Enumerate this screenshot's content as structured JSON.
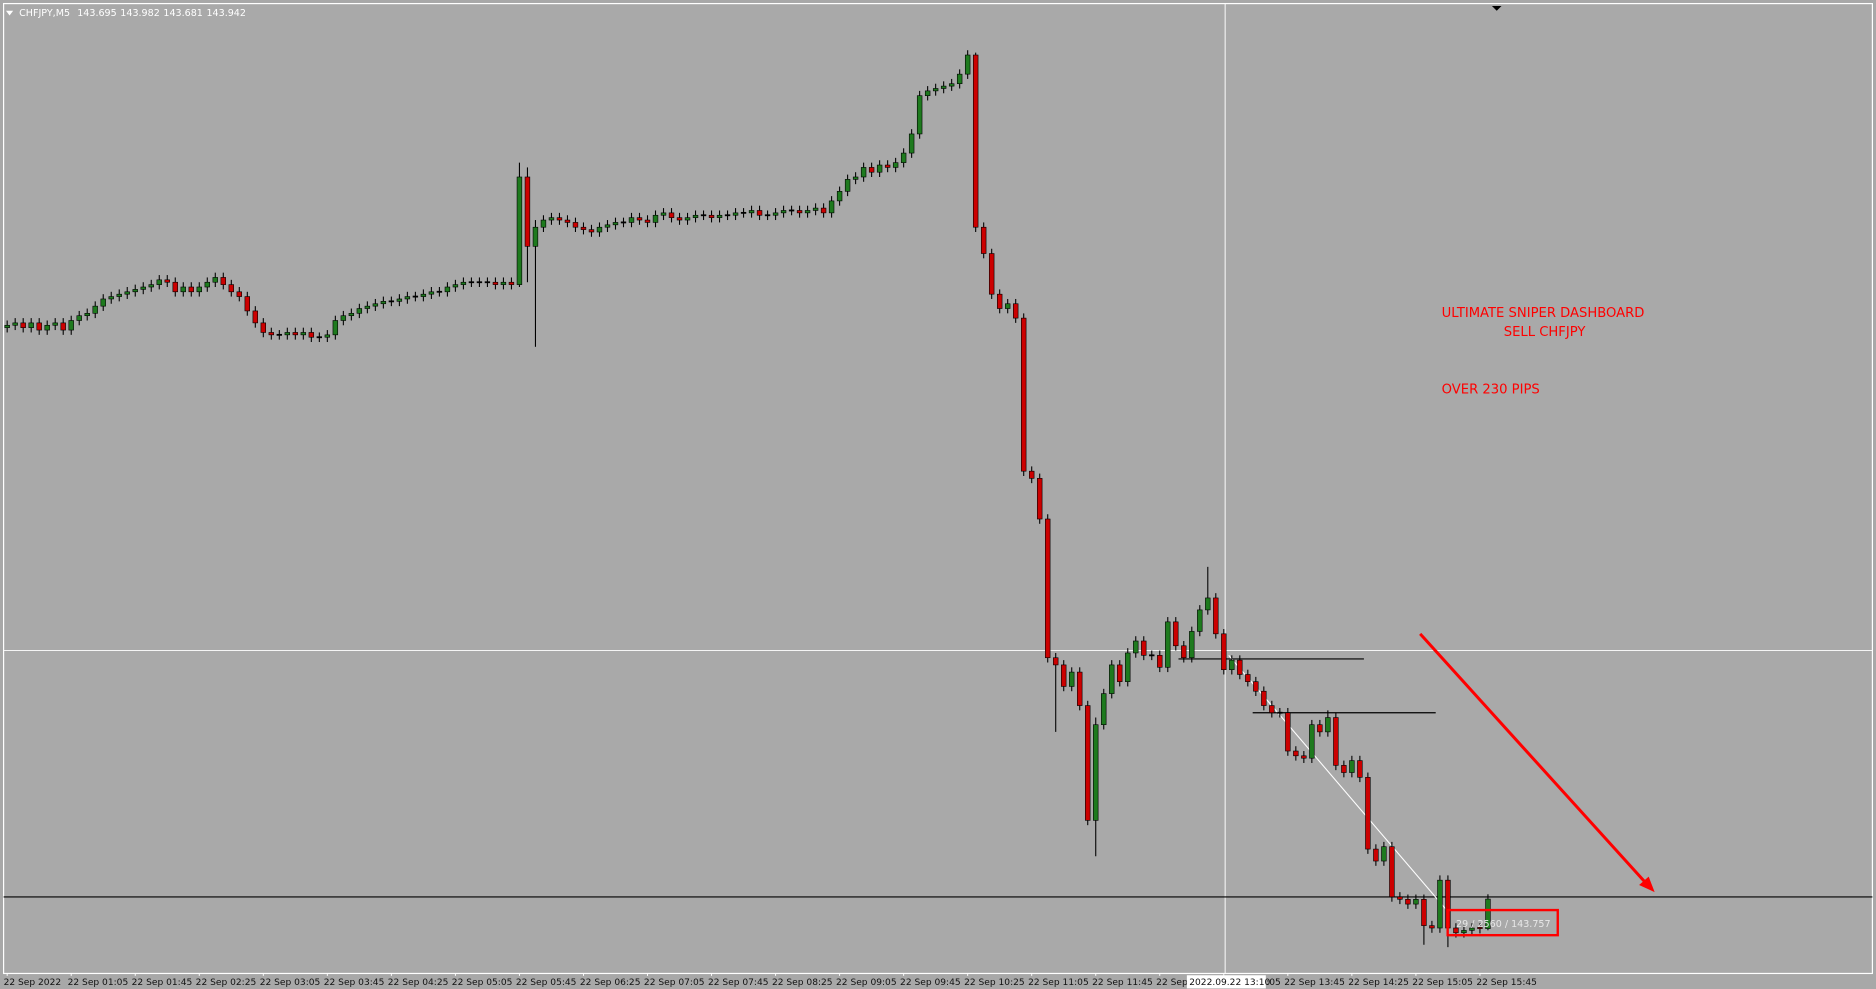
{
  "chart_data": {
    "type": "candlestick",
    "symbol": "CHFJPY,M5",
    "up_color": "#1e7a1e",
    "down_color": "#cc0000",
    "ylim": [
      143.32,
      151.43
    ],
    "categories": [
      "22 Sep 2022",
      null,
      null,
      null,
      null,
      null,
      null,
      null,
      "22 Sep 01:05",
      null,
      null,
      null,
      null,
      null,
      null,
      null,
      "22 Sep 01:45",
      null,
      null,
      null,
      null,
      null,
      null,
      null,
      "22 Sep 02:25",
      null,
      null,
      null,
      null,
      null,
      null,
      null,
      "22 Sep 03:05",
      null,
      null,
      null,
      null,
      null,
      null,
      null,
      "22 Sep 03:45",
      null,
      null,
      null,
      null,
      null,
      null,
      null,
      "22 Sep 04:25",
      null,
      null,
      null,
      null,
      null,
      null,
      null,
      "22 Sep 05:05",
      null,
      null,
      null,
      null,
      null,
      null,
      null,
      "22 Sep 05:45",
      null,
      null,
      null,
      null,
      null,
      null,
      null,
      "22 Sep 06:25",
      null,
      null,
      null,
      null,
      null,
      null,
      null,
      "22 Sep 07:05",
      null,
      null,
      null,
      null,
      null,
      null,
      null,
      "22 Sep 07:45",
      null,
      null,
      null,
      null,
      null,
      null,
      null,
      "22 Sep 08:25",
      null,
      null,
      null,
      null,
      null,
      null,
      null,
      "22 Sep 09:05",
      null,
      null,
      null,
      null,
      null,
      null,
      null,
      "22 Sep 09:45",
      null,
      null,
      null,
      null,
      null,
      null,
      null,
      "22 Sep 10:25",
      null,
      null,
      null,
      null,
      null,
      null,
      null,
      "22 Sep 11:05",
      null,
      null,
      null,
      null,
      null,
      null,
      null,
      "22 Sep 11:45",
      null,
      null,
      null,
      null,
      null,
      null,
      null,
      "22 Sep 12:25",
      null,
      null,
      null,
      null,
      null,
      null,
      null,
      "22 Sep 13:05",
      null,
      null,
      null,
      null,
      null,
      null,
      null,
      "22 Sep 13:45",
      null,
      null,
      null,
      null,
      null,
      null,
      null,
      "22 Sep 14:25",
      null,
      null,
      null,
      null,
      null,
      null,
      null,
      "22 Sep 15:05",
      null,
      null,
      null,
      null,
      null,
      null,
      null,
      "22 Sep 15:45",
      null
    ],
    "open": [
      148.72,
      148.74,
      148.76,
      148.72,
      148.76,
      148.7,
      148.74,
      148.76,
      148.7,
      148.78,
      148.82,
      148.84,
      148.9,
      148.96,
      148.98,
      149.0,
      149.02,
      149.04,
      149.06,
      149.08,
      149.12,
      149.1,
      149.02,
      149.06,
      149.02,
      149.06,
      149.1,
      149.14,
      149.08,
      149.02,
      148.98,
      148.86,
      148.76,
      148.68,
      148.66,
      148.66,
      148.68,
      148.66,
      148.68,
      148.64,
      148.64,
      148.66,
      148.78,
      148.82,
      148.84,
      148.88,
      148.9,
      148.92,
      148.94,
      148.94,
      148.96,
      148.98,
      148.98,
      149.0,
      149.02,
      149.02,
      149.06,
      149.08,
      149.1,
      149.1,
      149.1,
      149.1,
      149.08,
      149.1,
      149.08,
      149.98,
      149.4,
      149.56,
      149.62,
      149.64,
      149.62,
      149.6,
      149.56,
      149.54,
      149.52,
      149.56,
      149.58,
      149.6,
      149.6,
      149.64,
      149.62,
      149.6,
      149.66,
      149.68,
      149.64,
      149.62,
      149.64,
      149.66,
      149.66,
      149.64,
      149.66,
      149.66,
      149.68,
      149.68,
      149.7,
      149.66,
      149.66,
      149.68,
      149.7,
      149.7,
      149.68,
      149.7,
      149.72,
      149.68,
      149.78,
      149.86,
      149.96,
      149.98,
      150.06,
      150.02,
      150.08,
      150.06,
      150.1,
      150.18,
      150.34,
      150.66,
      150.7,
      150.72,
      150.74,
      150.76,
      150.84,
      151.0,
      149.56,
      149.34,
      149.0,
      148.88,
      148.92,
      148.8,
      147.52,
      147.46,
      147.12,
      145.96,
      145.9,
      145.72,
      145.84,
      145.56,
      144.6,
      145.4,
      145.66,
      145.9,
      145.76,
      146.0,
      146.1,
      145.98,
      145.98,
      145.88,
      146.26,
      146.06,
      145.96,
      146.18,
      146.36,
      146.46,
      146.16,
      145.86,
      145.94,
      145.82,
      145.76,
      145.68,
      145.56,
      145.5,
      145.5,
      145.18,
      145.14,
      145.12,
      145.4,
      145.34,
      145.46,
      145.06,
      145.0,
      145.1,
      144.96,
      144.36,
      144.26,
      144.38,
      143.96,
      143.94,
      143.9,
      143.94,
      143.72,
      143.7,
      144.1,
      143.7,
      143.66,
      143.68,
      143.7,
      143.695
    ],
    "high": [
      148.78,
      148.8,
      148.8,
      148.8,
      148.8,
      148.78,
      148.8,
      148.8,
      148.82,
      148.86,
      148.88,
      148.94,
      149.0,
      149.02,
      149.04,
      149.06,
      149.08,
      149.1,
      149.12,
      149.16,
      149.16,
      149.14,
      149.1,
      149.1,
      149.1,
      149.14,
      149.18,
      149.18,
      149.12,
      149.06,
      149.02,
      148.9,
      148.8,
      148.72,
      148.7,
      148.72,
      148.72,
      148.72,
      148.72,
      148.68,
      148.7,
      148.82,
      148.86,
      148.88,
      148.92,
      148.94,
      148.96,
      148.98,
      148.98,
      149.0,
      149.02,
      149.02,
      149.04,
      149.06,
      149.06,
      149.1,
      149.12,
      149.14,
      149.14,
      149.14,
      149.14,
      149.14,
      149.14,
      149.14,
      150.1,
      150.06,
      149.62,
      149.66,
      149.68,
      149.68,
      149.66,
      149.64,
      149.6,
      149.58,
      149.6,
      149.62,
      149.64,
      149.64,
      149.68,
      149.68,
      149.66,
      149.7,
      149.72,
      149.72,
      149.68,
      149.68,
      149.7,
      149.7,
      149.7,
      149.7,
      149.7,
      149.72,
      149.72,
      149.74,
      149.74,
      149.7,
      149.72,
      149.74,
      149.74,
      149.74,
      149.74,
      149.76,
      149.76,
      149.82,
      149.9,
      150.0,
      150.02,
      150.1,
      150.1,
      150.12,
      150.12,
      150.14,
      150.22,
      150.38,
      150.7,
      150.74,
      150.76,
      150.78,
      150.8,
      150.88,
      151.04,
      151.02,
      149.6,
      149.38,
      149.04,
      148.96,
      148.96,
      148.84,
      147.56,
      147.5,
      147.16,
      146.0,
      145.94,
      145.88,
      145.88,
      145.6,
      145.46,
      145.7,
      145.94,
      145.94,
      146.04,
      146.14,
      146.14,
      146.02,
      146.02,
      146.3,
      146.3,
      146.1,
      146.22,
      146.4,
      146.72,
      146.5,
      146.2,
      145.98,
      145.98,
      145.86,
      145.8,
      145.72,
      145.6,
      145.54,
      145.54,
      145.22,
      145.18,
      145.44,
      145.44,
      145.52,
      145.5,
      145.1,
      145.14,
      145.14,
      145.0,
      144.4,
      144.42,
      144.42,
      144.0,
      143.98,
      143.98,
      143.98,
      143.76,
      144.14,
      144.14,
      143.74,
      143.72,
      143.74,
      143.74,
      143.982
    ],
    "low": [
      148.68,
      148.7,
      148.68,
      148.68,
      148.66,
      148.66,
      148.7,
      148.66,
      148.66,
      148.74,
      148.78,
      148.8,
      148.86,
      148.92,
      148.94,
      148.96,
      148.98,
      149.0,
      149.02,
      149.04,
      149.06,
      148.98,
      148.98,
      148.98,
      148.98,
      149.02,
      149.06,
      149.04,
      148.98,
      148.94,
      148.82,
      148.72,
      148.64,
      148.62,
      148.62,
      148.62,
      148.62,
      148.62,
      148.6,
      148.6,
      148.6,
      148.62,
      148.74,
      148.78,
      148.8,
      148.84,
      148.86,
      148.88,
      148.9,
      148.9,
      148.92,
      148.94,
      148.94,
      148.96,
      148.98,
      148.98,
      149.02,
      149.04,
      149.06,
      149.06,
      149.06,
      149.04,
      149.04,
      149.04,
      149.06,
      149.1,
      148.56,
      149.52,
      149.58,
      149.58,
      149.56,
      149.52,
      149.5,
      149.48,
      149.48,
      149.52,
      149.54,
      149.56,
      149.56,
      149.58,
      149.56,
      149.56,
      149.62,
      149.6,
      149.58,
      149.58,
      149.6,
      149.62,
      149.6,
      149.6,
      149.62,
      149.62,
      149.64,
      149.64,
      149.62,
      149.62,
      149.62,
      149.64,
      149.66,
      149.64,
      149.64,
      149.66,
      149.64,
      149.64,
      149.74,
      149.82,
      149.92,
      149.94,
      149.98,
      149.98,
      150.02,
      150.02,
      150.06,
      150.14,
      150.3,
      150.62,
      150.66,
      150.68,
      150.7,
      150.72,
      150.8,
      149.52,
      149.3,
      148.96,
      148.84,
      148.84,
      148.76,
      147.48,
      147.42,
      147.08,
      145.92,
      145.34,
      145.68,
      145.68,
      145.52,
      144.56,
      144.3,
      145.36,
      145.62,
      145.72,
      145.72,
      145.96,
      145.94,
      145.94,
      145.84,
      145.84,
      146.02,
      145.92,
      145.92,
      146.14,
      146.32,
      146.12,
      145.82,
      145.82,
      145.78,
      145.72,
      145.64,
      145.52,
      145.46,
      145.46,
      145.14,
      145.1,
      145.08,
      145.08,
      145.3,
      145.3,
      145.02,
      144.96,
      144.96,
      144.92,
      144.32,
      144.22,
      144.22,
      143.92,
      143.9,
      143.86,
      143.86,
      143.56,
      143.66,
      143.66,
      143.54,
      143.62,
      143.62,
      143.64,
      143.655,
      143.681
    ],
    "close": [
      148.74,
      148.76,
      148.72,
      148.76,
      148.7,
      148.74,
      148.76,
      148.7,
      148.78,
      148.82,
      148.84,
      148.9,
      148.96,
      148.98,
      149.0,
      149.02,
      149.04,
      149.06,
      149.08,
      149.12,
      149.1,
      149.02,
      149.06,
      149.02,
      149.06,
      149.1,
      149.14,
      149.08,
      149.02,
      148.98,
      148.86,
      148.76,
      148.68,
      148.66,
      148.66,
      148.68,
      148.66,
      148.68,
      148.64,
      148.64,
      148.66,
      148.78,
      148.82,
      148.84,
      148.88,
      148.9,
      148.92,
      148.94,
      148.94,
      148.96,
      148.98,
      148.98,
      149.0,
      149.02,
      149.02,
      149.06,
      149.08,
      149.1,
      149.1,
      149.1,
      149.1,
      149.08,
      149.1,
      149.08,
      149.98,
      149.4,
      149.56,
      149.62,
      149.64,
      149.62,
      149.6,
      149.56,
      149.54,
      149.52,
      149.56,
      149.58,
      149.6,
      149.6,
      149.64,
      149.62,
      149.6,
      149.66,
      149.68,
      149.64,
      149.62,
      149.64,
      149.66,
      149.66,
      149.64,
      149.66,
      149.66,
      149.68,
      149.68,
      149.7,
      149.66,
      149.66,
      149.68,
      149.7,
      149.7,
      149.68,
      149.7,
      149.72,
      149.68,
      149.78,
      149.86,
      149.96,
      149.98,
      150.06,
      150.02,
      150.08,
      150.06,
      150.1,
      150.18,
      150.34,
      150.66,
      150.7,
      150.72,
      150.74,
      150.76,
      150.84,
      151.0,
      149.56,
      149.34,
      149.0,
      148.88,
      148.92,
      148.8,
      147.52,
      147.46,
      147.12,
      145.96,
      145.9,
      145.72,
      145.84,
      145.56,
      144.6,
      145.4,
      145.66,
      145.9,
      145.76,
      146.0,
      146.1,
      145.98,
      145.98,
      145.88,
      146.26,
      146.06,
      145.96,
      146.18,
      146.36,
      146.46,
      146.16,
      145.86,
      145.94,
      145.82,
      145.76,
      145.68,
      145.56,
      145.5,
      145.5,
      145.18,
      145.14,
      145.12,
      145.4,
      145.34,
      145.46,
      145.06,
      145.0,
      145.1,
      144.96,
      144.36,
      144.26,
      144.38,
      143.96,
      143.94,
      143.9,
      143.94,
      143.72,
      143.7,
      144.1,
      143.7,
      143.66,
      143.68,
      143.7,
      143.695,
      143.942
    ],
    "annotations": [
      "ULTIMATE SNIPER DASHBOARD",
      "SELL CHFJPY",
      "OVER 230 PIPS"
    ],
    "crosshair_time": "2022.09.22 13:10",
    "crosshair_info": "29 / 2560 / 143.757"
  }
}
